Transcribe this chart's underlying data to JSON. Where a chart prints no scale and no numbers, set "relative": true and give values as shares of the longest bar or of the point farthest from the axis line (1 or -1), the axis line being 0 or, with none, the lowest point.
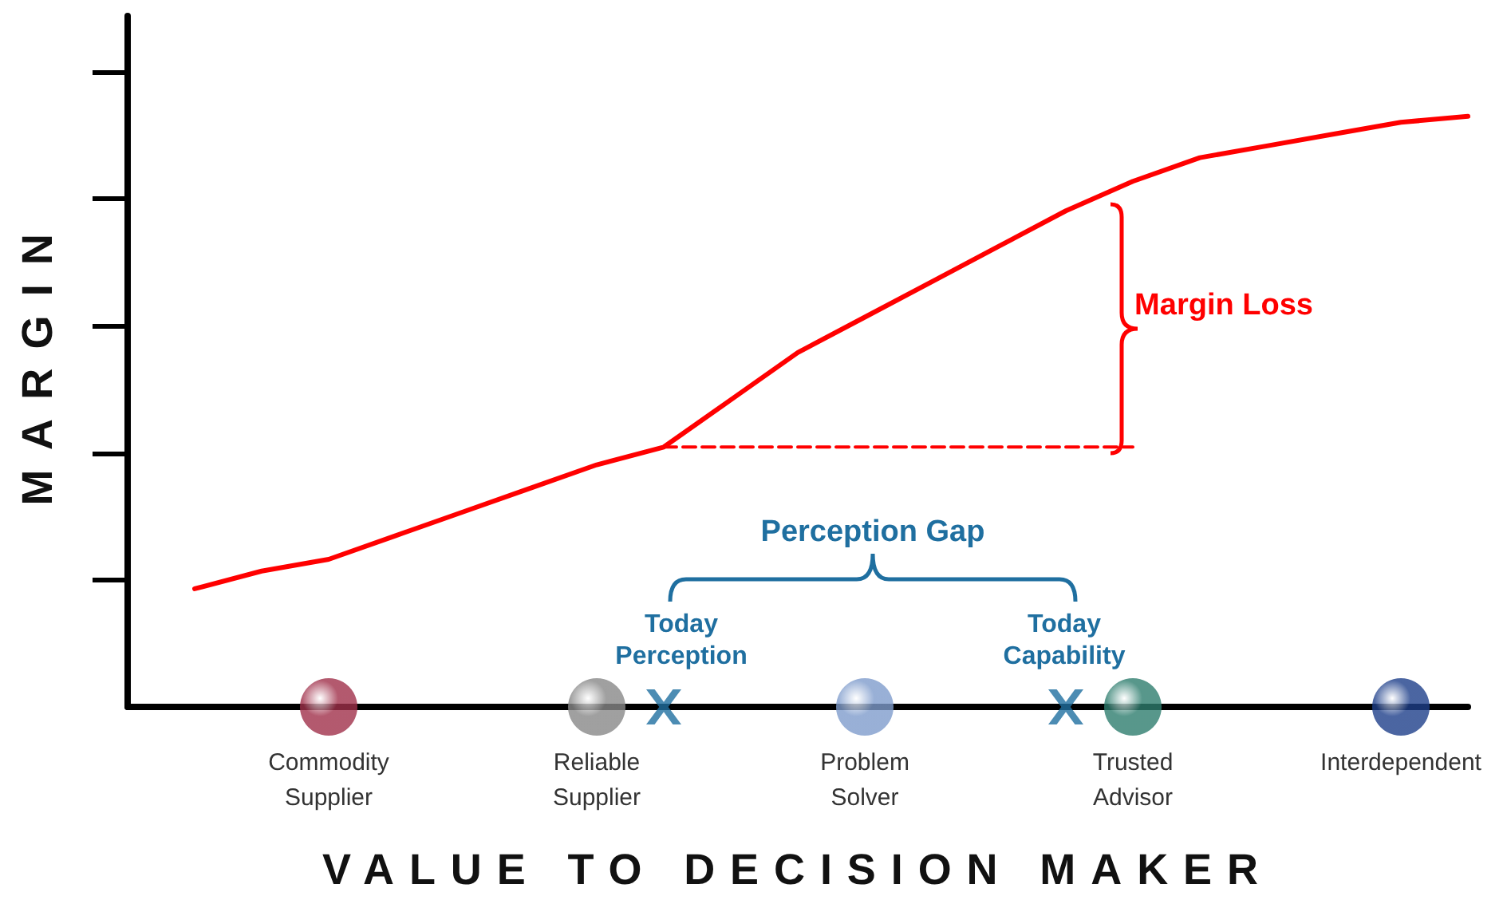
{
  "chart_data": {
    "type": "line",
    "relative": true,
    "xlabel": "VALUE TO DECISION MAKER",
    "ylabel": "MARGIN",
    "grid": false,
    "categories": [
      null,
      null,
      null,
      "Commodity\nSupplier",
      null,
      null,
      null,
      "Reliable\nSupplier",
      null,
      null,
      null,
      "Problem\nSolver",
      null,
      null,
      null,
      "Trusted\nAdvisor",
      null,
      null,
      null,
      "Interdependent",
      null
    ],
    "series": [
      {
        "color": "#ff0000",
        "marker": "none",
        "line_style": "solid",
        "values": [
          null,
          0.2,
          0.23,
          0.25,
          0.29,
          0.33,
          0.37,
          0.41,
          0.44,
          0.52,
          0.6,
          0.66,
          0.72,
          0.78,
          0.84,
          0.89,
          0.93,
          0.95,
          0.97,
          0.99,
          1.0
        ]
      },
      {
        "color": "#ff0000",
        "marker": "none",
        "line_style": "dashed",
        "values": [
          null,
          null,
          null,
          null,
          null,
          null,
          null,
          null,
          0.44,
          0.44,
          0.44,
          0.44,
          0.44,
          0.44,
          0.44,
          0.44,
          null,
          null,
          null,
          null,
          null
        ]
      },
      {
        "type": "scatter",
        "marker": "circle",
        "colors": [
          null,
          null,
          null,
          "#a0304a",
          null,
          null,
          null,
          "#888888",
          null,
          null,
          null,
          "#7f9ccc",
          null,
          null,
          null,
          "#2e7d6e",
          null,
          null,
          null,
          "#1e3f8a",
          null
        ],
        "values": [
          null,
          null,
          null,
          0,
          null,
          null,
          null,
          0,
          null,
          null,
          null,
          0,
          null,
          null,
          null,
          0,
          null,
          null,
          null,
          0,
          null
        ]
      },
      {
        "type": "scatter",
        "marker": "cross",
        "color": "#1f6fa0",
        "values": [
          null,
          null,
          null,
          null,
          null,
          null,
          null,
          null,
          0,
          null,
          null,
          null,
          null,
          null,
          0,
          null,
          null,
          null,
          null,
          null,
          null
        ]
      }
    ],
    "annotations": [
      "Margin Loss",
      "Perception Gap",
      "Today\nPerception",
      "Today\nCapability"
    ]
  }
}
